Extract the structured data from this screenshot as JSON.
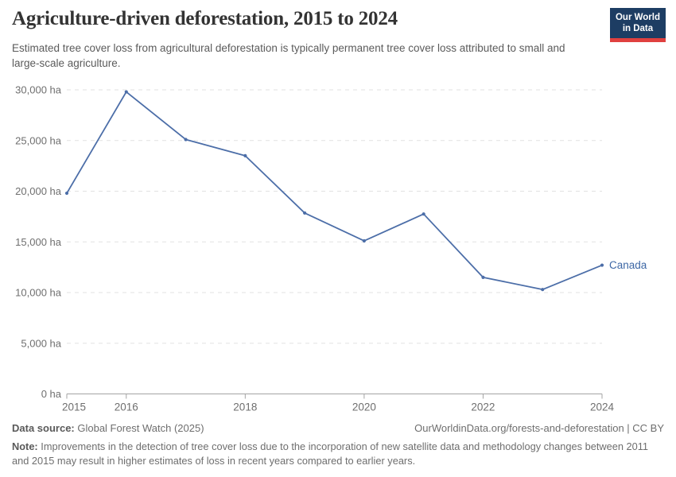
{
  "header": {
    "title": "Agriculture-driven deforestation, 2015 to 2024",
    "subtitle": "Estimated tree cover loss from agricultural deforestation is typically permanent tree cover loss attributed to small and large-scale agriculture.",
    "logo": {
      "line1": "Our World",
      "line2": "in Data"
    }
  },
  "chart_data": {
    "type": "line",
    "title": "Agriculture-driven deforestation, 2015 to 2024",
    "x": [
      2015,
      2016,
      2017,
      2018,
      2019,
      2020,
      2021,
      2022,
      2023,
      2024
    ],
    "series": [
      {
        "name": "Canada",
        "values": [
          19800,
          29800,
          25100,
          23500,
          17850,
          15100,
          17750,
          11500,
          10300,
          12700
        ]
      }
    ],
    "ylim": [
      0,
      30000
    ],
    "ytick_step": 5000,
    "ytick_suffix": " ha",
    "xticks_labeled": [
      2015,
      2016,
      2018,
      2020,
      2022,
      2024
    ],
    "grid": "horizontal-dashed",
    "legend_position": "end-of-line"
  },
  "colors": {
    "line": "#4c6ea8",
    "entity_label": "#3d67a5",
    "grid": "#e2e2e2",
    "axis": "#a3a3a3",
    "tick_text": "#6f6f6f",
    "logo_bg": "#1d3d63",
    "logo_accent": "#e0403f"
  },
  "footer": {
    "datasource_label": "Data source:",
    "datasource_value": " Global Forest Watch (2025)",
    "link": "OurWorldinData.org/forests-and-deforestation | CC BY",
    "note_label": "Note:",
    "note_text": " Improvements in the detection of tree cover loss due to the incorporation of new satellite data and methodology changes between 2011 and 2015 may result in higher estimates of loss in recent years compared to earlier years."
  }
}
